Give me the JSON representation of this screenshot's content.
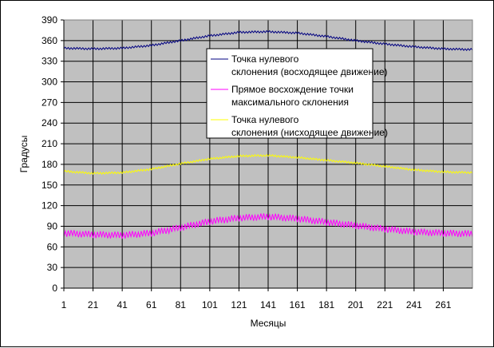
{
  "chart_data": {
    "type": "line",
    "xlabel": "Месяцы",
    "ylabel": "Градусы",
    "ylim": [
      0,
      390
    ],
    "xlim": [
      1,
      281
    ],
    "y_ticks": [
      0,
      30,
      60,
      90,
      120,
      150,
      180,
      210,
      240,
      270,
      300,
      330,
      360,
      390
    ],
    "x_ticks": [
      1,
      21,
      41,
      61,
      81,
      101,
      121,
      141,
      161,
      181,
      201,
      221,
      241,
      261
    ],
    "grid": true,
    "legend_position": "inside-top-right",
    "plot_background": "#c0c0c0",
    "series": [
      {
        "name": "Точка нулевого склонения (восходящее движение)",
        "color": "#000080",
        "x": [
          1,
          21,
          41,
          61,
          81,
          101,
          121,
          141,
          161,
          181,
          201,
          221,
          241,
          261,
          281
        ],
        "values": [
          349,
          348,
          349,
          353,
          360,
          367,
          372,
          373,
          371,
          366,
          360,
          355,
          351,
          348,
          347
        ],
        "noise_amplitude": 1.5
      },
      {
        "name": "Прямое восхождение точки максимального склонения",
        "color": "#ff00ff",
        "x": [
          1,
          21,
          41,
          61,
          81,
          101,
          121,
          141,
          161,
          181,
          201,
          221,
          241,
          261,
          281
        ],
        "values": [
          80,
          78,
          77,
          80,
          88,
          97,
          102,
          104,
          101,
          96,
          91,
          86,
          82,
          80,
          79
        ],
        "noise_amplitude": 5
      },
      {
        "name": "Точка нулевого склонения (нисходящее движение)",
        "color": "#ffff00",
        "x": [
          1,
          21,
          41,
          61,
          81,
          101,
          121,
          141,
          161,
          181,
          201,
          221,
          241,
          261,
          281
        ],
        "values": [
          170,
          167,
          168,
          173,
          181,
          188,
          192,
          193,
          190,
          186,
          182,
          177,
          172,
          169,
          168
        ],
        "noise_amplitude": 1.5
      }
    ]
  }
}
